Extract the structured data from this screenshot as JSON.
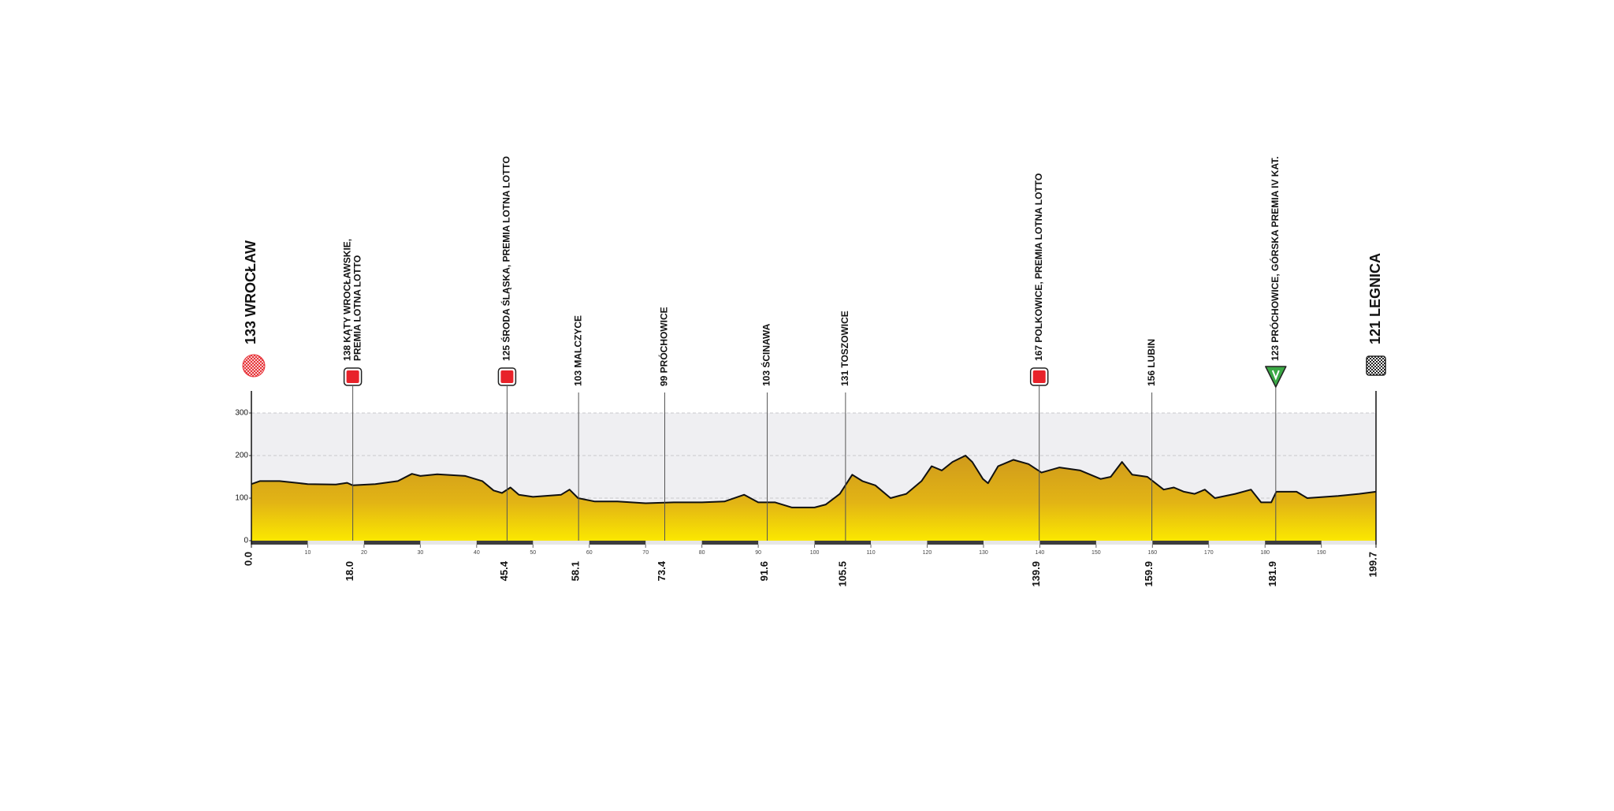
{
  "chart_data": {
    "type": "area",
    "x": [
      0,
      1.5,
      5,
      10,
      15,
      17,
      18,
      22,
      26,
      28.5,
      30,
      33,
      38,
      41,
      43,
      44.5,
      46,
      47.5,
      50,
      55,
      56.5,
      58,
      61,
      65,
      70,
      75,
      80,
      84,
      87.5,
      90,
      93,
      96,
      100,
      102,
      104.5,
      106.7,
      108.5,
      110.8,
      113.5,
      116.3,
      119,
      120.8,
      122.6,
      124.5,
      126.8,
      128,
      129.9,
      130.8,
      132.6,
      135.3,
      138,
      140.3,
      143.5,
      147.2,
      150.8,
      152.6,
      154.6,
      156.4,
      159.1,
      162,
      163.8,
      165.6,
      167.5,
      169.3,
      171.1,
      174.7,
      177.5,
      179.3,
      181.1,
      182,
      185.6,
      187.5,
      193,
      196.7,
      199.7
    ],
    "values": [
      133,
      140,
      140,
      133,
      132,
      136,
      130,
      133,
      140,
      157,
      152,
      156,
      152,
      140,
      118,
      112,
      125,
      108,
      103,
      108,
      120,
      100,
      92,
      92,
      88,
      90,
      90,
      92,
      108,
      90,
      90,
      78,
      78,
      85,
      110,
      155,
      140,
      130,
      100,
      110,
      140,
      175,
      165,
      185,
      200,
      185,
      145,
      135,
      175,
      190,
      180,
      160,
      172,
      165,
      145,
      150,
      185,
      155,
      150,
      120,
      125,
      115,
      110,
      120,
      100,
      110,
      120,
      90,
      90,
      115,
      115,
      100,
      105,
      110,
      115
    ],
    "xlim": [
      0,
      199.7
    ],
    "ylim": [
      0,
      300
    ],
    "yticks": [
      0,
      100,
      200,
      300
    ],
    "xticks": [
      10,
      20,
      30,
      40,
      50,
      60,
      70,
      80,
      90,
      100,
      110,
      120,
      130,
      140,
      150,
      160,
      170,
      180,
      190
    ],
    "grid": true,
    "start": {
      "x": {
        "value": 0,
        "label": "0.0"
      },
      "name": "133 WROCŁAW"
    },
    "finish": {
      "x": {
        "value": 199.7,
        "label": "199.7"
      },
      "name": "121 LEGNICA"
    },
    "checkpoints": [
      {
        "x": {
          "value": 18,
          "label": "18.0"
        },
        "name": [
          "138 KĄTY WROCŁAWSKIE,",
          "PREMIA LOTNA LOTTO"
        ],
        "marker": "sprint"
      },
      {
        "x": {
          "value": 45.4,
          "label": "45.4"
        },
        "name": [
          "125 ŚRODA ŚLĄSKA, PREMIA LOTNA LOTTO"
        ],
        "marker": "sprint"
      },
      {
        "x": {
          "value": 58.1,
          "label": "58.1"
        },
        "name": [
          "103 MALCZYCE"
        ],
        "marker": "none"
      },
      {
        "x": {
          "value": 73.4,
          "label": "73.4"
        },
        "name": [
          "99 PRÓCHOWICE"
        ],
        "marker": "none"
      },
      {
        "x": {
          "value": 91.6,
          "label": "91.6"
        },
        "name": [
          "103 ŚCINAWA"
        ],
        "marker": "none"
      },
      {
        "x": {
          "value": 105.5,
          "label": "105.5"
        },
        "name": [
          "131 TOSZOWICE"
        ],
        "marker": "none"
      },
      {
        "x": {
          "value": 139.9,
          "label": "139.9"
        },
        "name": [
          "167 POLKOWICE, PREMIA LOTNA LOTTO"
        ],
        "marker": "sprint"
      },
      {
        "x": {
          "value": 159.9,
          "label": "159.9"
        },
        "name": [
          "156 LUBIN"
        ],
        "marker": "none"
      },
      {
        "x": {
          "value": 181.9,
          "label": "181.9"
        },
        "name": [
          "123 PRÓCHOWICE, GÓRSKA PREMIA IV KAT."
        ],
        "marker": "mountain"
      }
    ]
  }
}
